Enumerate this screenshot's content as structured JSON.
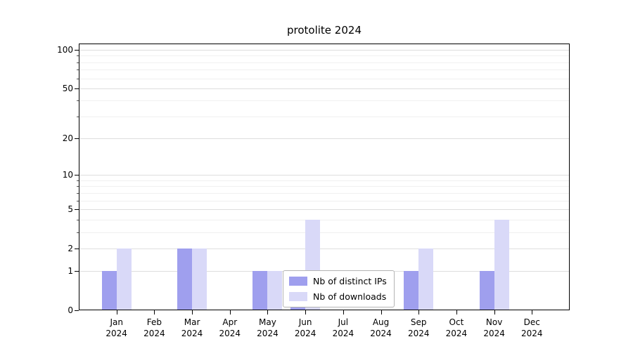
{
  "chart_data": {
    "type": "bar",
    "title": "protolite 2024",
    "x_year": "2024",
    "months": [
      "Jan",
      "Feb",
      "Mar",
      "Apr",
      "May",
      "Jun",
      "Jul",
      "Aug",
      "Sep",
      "Oct",
      "Nov",
      "Dec"
    ],
    "categories": [
      "Jan 2024",
      "Feb 2024",
      "Mar 2024",
      "Apr 2024",
      "May 2024",
      "Jun 2024",
      "Jul 2024",
      "Aug 2024",
      "Sep 2024",
      "Oct 2024",
      "Nov 2024",
      "Dec 2024"
    ],
    "series": [
      {
        "name": "Nb of distinct IPs",
        "color": "#9f9fee",
        "values": [
          1,
          0,
          2,
          0,
          1,
          1,
          0,
          0,
          1,
          0,
          1,
          0
        ]
      },
      {
        "name": "Nb of downloads",
        "color": "#d9d9f8",
        "values": [
          2,
          0,
          2,
          0,
          1,
          4,
          0,
          0,
          2,
          0,
          4,
          0
        ]
      }
    ],
    "y_axis": {
      "scale": "log1p",
      "major_ticks": [
        0,
        1,
        2,
        5,
        10,
        20,
        50,
        100
      ],
      "minor_ticks": [
        3,
        4,
        6,
        7,
        8,
        9,
        30,
        40,
        60,
        70,
        80,
        90
      ],
      "top_value": 112
    },
    "legend": {
      "position": "lower center",
      "entries": [
        "Nb of distinct IPs",
        "Nb of downloads"
      ]
    },
    "grid": true
  }
}
